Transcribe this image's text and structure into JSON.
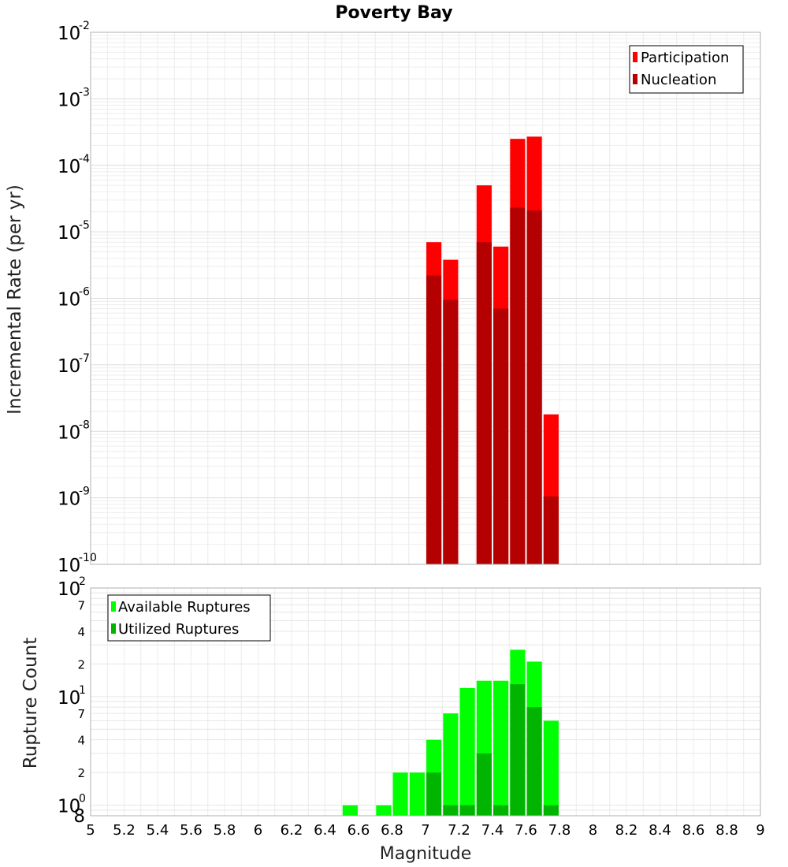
{
  "chart_data": [
    {
      "type": "bar",
      "title": "Poverty Bay",
      "ylabel": "Incremental Rate (per yr)",
      "xlim": [
        5,
        9
      ],
      "ylim": [
        1e-10,
        0.01
      ],
      "yscale": "log",
      "grid": true,
      "legend_position": "top-right",
      "y_tick_bases": [
        "10",
        "10",
        "10",
        "10",
        "10",
        "10",
        "10",
        "10",
        "10"
      ],
      "y_tick_exponents": [
        "-10",
        "-9",
        "-8",
        "-7",
        "-6",
        "-5",
        "-4",
        "-3",
        "-2"
      ],
      "x": [
        7.05,
        7.15,
        7.35,
        7.45,
        7.55,
        7.65,
        7.75
      ],
      "series": [
        {
          "name": "Participation",
          "color": "#ff0000",
          "values": [
            7e-06,
            3.8e-06,
            5e-05,
            6e-06,
            0.00025,
            0.00027,
            1.8e-08
          ]
        },
        {
          "name": "Nucleation",
          "color": "#b40000",
          "values": [
            2.2e-06,
            9.5e-07,
            7e-06,
            7e-07,
            2.3e-05,
            2.1e-05,
            1.05e-09
          ]
        }
      ]
    },
    {
      "type": "bar",
      "xlabel": "Magnitude",
      "ylabel": "Rupture Count",
      "xlim": [
        5,
        9
      ],
      "ylim": [
        0.8,
        100
      ],
      "yscale": "log",
      "grid": true,
      "legend_position": "top-left",
      "x_ticks": [
        "5",
        "5.2",
        "5.4",
        "5.6",
        "5.8",
        "6",
        "6.2",
        "6.4",
        "6.6",
        "6.8",
        "7",
        "7.2",
        "7.4",
        "7.6",
        "7.8",
        "8",
        "8.2",
        "8.4",
        "8.6",
        "8.8",
        "9"
      ],
      "y_major_bases": [
        "10",
        "10",
        "10"
      ],
      "y_major_exponents": [
        "0",
        "1",
        "2"
      ],
      "y_minor_labels": [
        "8",
        "2",
        "4",
        "7",
        "2",
        "4",
        "7"
      ],
      "x": [
        6.55,
        6.75,
        6.85,
        6.95,
        7.05,
        7.15,
        7.25,
        7.35,
        7.45,
        7.55,
        7.65,
        7.75
      ],
      "series": [
        {
          "name": "Available Ruptures",
          "color": "#00ff00",
          "values": [
            1,
            1,
            2,
            2,
            4,
            7,
            12,
            14,
            14,
            27,
            21,
            6
          ]
        },
        {
          "name": "Utilized Ruptures",
          "color": "#00b400",
          "values": [
            0,
            0,
            0,
            0,
            2,
            1,
            1,
            3,
            1,
            13,
            8,
            1
          ]
        }
      ]
    }
  ]
}
